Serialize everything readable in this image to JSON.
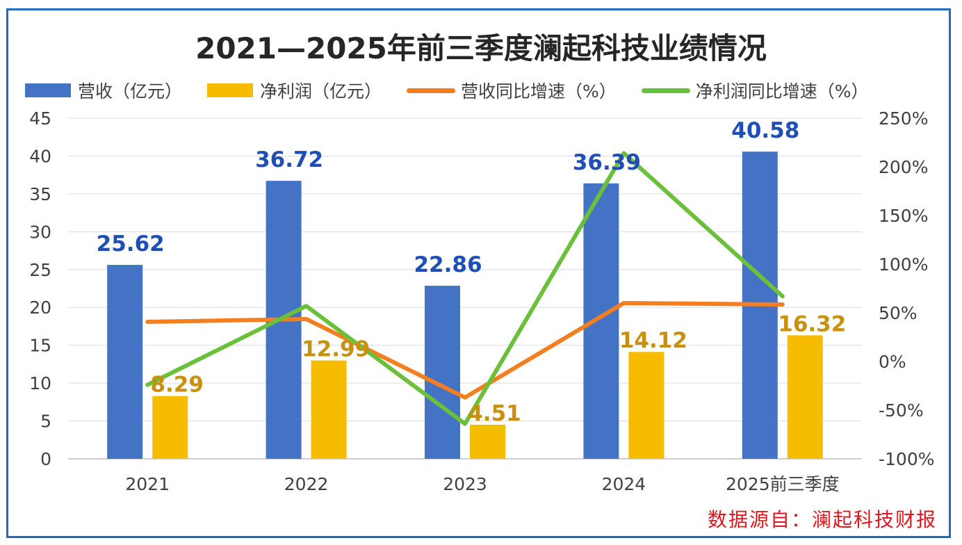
{
  "chart_data": {
    "type": "bar",
    "title": "2021—2025年前三季度澜起科技业绩情况",
    "categories": [
      "2021",
      "2022",
      "2023",
      "2024",
      "2025前三季度"
    ],
    "series": [
      {
        "name": "营收（亿元）",
        "type": "bar",
        "axis": "left",
        "color": "#4472c4",
        "values": [
          25.62,
          36.72,
          22.86,
          36.39,
          40.58
        ],
        "labels": [
          "25.62",
          "36.72",
          "22.86",
          "36.39",
          "40.58"
        ]
      },
      {
        "name": "净利润（亿元）",
        "type": "bar",
        "axis": "left",
        "color": "#f5bc00",
        "values": [
          8.29,
          12.99,
          4.51,
          14.12,
          16.32
        ],
        "labels": [
          "8.29",
          "12.99",
          "4.51",
          "14.12",
          "16.32"
        ]
      },
      {
        "name": "营收同比增速（%）",
        "type": "line",
        "axis": "right",
        "color": "#f47f20",
        "values": [
          40.7,
          43.6,
          -37,
          60,
          58.6
        ]
      },
      {
        "name": "净利润同比增速（%）",
        "type": "line",
        "axis": "right",
        "color": "#6bbf3b",
        "values": [
          -24,
          57,
          -64,
          214,
          67
        ]
      }
    ],
    "y_left": {
      "range": [
        0,
        45
      ],
      "ticks": [
        "0",
        "5",
        "10",
        "15",
        "20",
        "25",
        "30",
        "35",
        "40",
        "45"
      ]
    },
    "y_right": {
      "range": [
        -100,
        250
      ],
      "ticks": [
        "-100%",
        "-50%",
        "0%",
        "50%",
        "100%",
        "150%",
        "200%",
        "250%"
      ]
    },
    "grid": true,
    "legend_position": "top"
  },
  "source_note": "数据源自：澜起科技财报"
}
